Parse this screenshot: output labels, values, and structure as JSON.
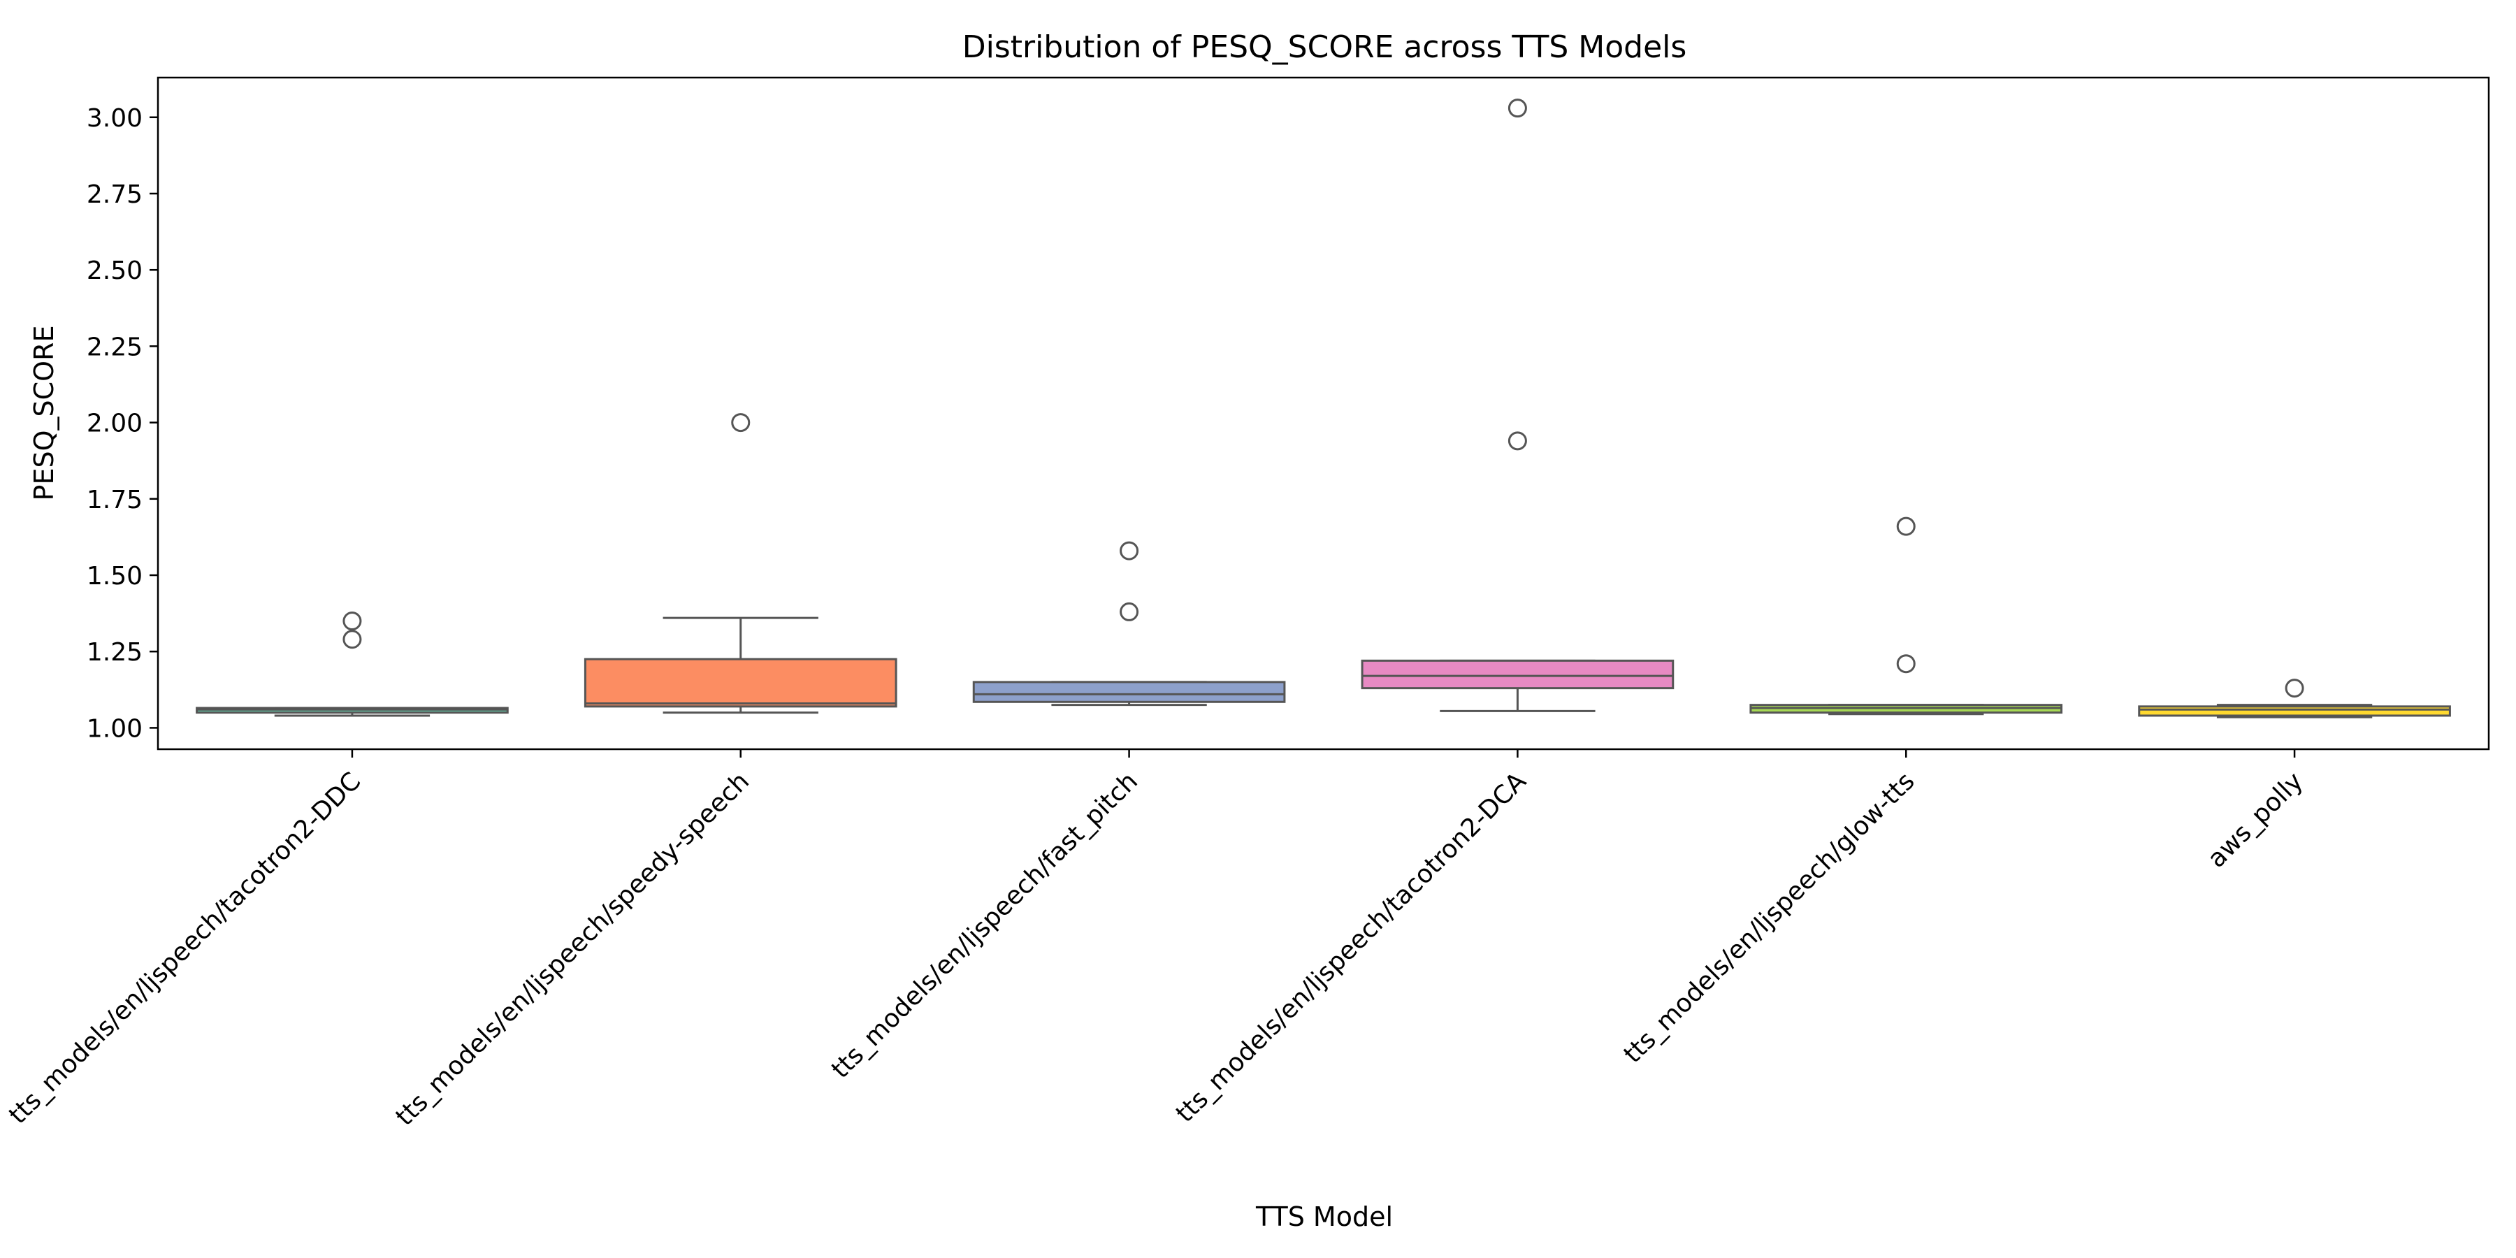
{
  "chart_data": {
    "type": "box",
    "title": "Distribution of PESQ_SCORE across TTS Models",
    "xlabel": "TTS Model",
    "ylabel": "PESQ_SCORE",
    "ylim": [
      0.93,
      3.13
    ],
    "yticks": [
      1.0,
      1.25,
      1.5,
      1.75,
      2.0,
      2.25,
      2.5,
      2.75,
      3.0
    ],
    "ytick_labels": [
      "1.00",
      "1.25",
      "1.50",
      "1.75",
      "2.00",
      "2.25",
      "2.50",
      "2.75",
      "3.00"
    ],
    "grid": false,
    "categories": [
      "tts_models/en/ljspeech/tacotron2-DDC",
      "tts_models/en/ljspeech/speedy-speech",
      "tts_models/en/ljspeech/fast_pitch",
      "tts_models/en/ljspeech/tacotron2-DCA",
      "tts_models/en/ljspeech/glow-tts",
      "aws_polly"
    ],
    "boxes": [
      {
        "whisker_low": 1.04,
        "q1": 1.05,
        "median": 1.06,
        "q3": 1.065,
        "whisker_high": 1.065,
        "outliers": [
          1.35,
          1.29
        ],
        "color": "#66c2a5"
      },
      {
        "whisker_low": 1.05,
        "q1": 1.07,
        "median": 1.08,
        "q3": 1.225,
        "whisker_high": 1.36,
        "outliers": [
          2.0
        ],
        "color": "#fc8d62"
      },
      {
        "whisker_low": 1.075,
        "q1": 1.085,
        "median": 1.11,
        "q3": 1.15,
        "whisker_high": 1.15,
        "outliers": [
          1.58,
          1.38
        ],
        "color": "#8da0cb"
      },
      {
        "whisker_low": 1.055,
        "q1": 1.13,
        "median": 1.17,
        "q3": 1.22,
        "whisker_high": 1.22,
        "outliers": [
          3.03,
          1.94
        ],
        "color": "#e78ac3"
      },
      {
        "whisker_low": 1.045,
        "q1": 1.05,
        "median": 1.065,
        "q3": 1.075,
        "whisker_high": 1.075,
        "outliers": [
          1.66,
          1.21
        ],
        "color": "#a6d854"
      },
      {
        "whisker_low": 1.035,
        "q1": 1.04,
        "median": 1.06,
        "q3": 1.07,
        "whisker_high": 1.075,
        "outliers": [
          1.13
        ],
        "color": "#ffd92f"
      }
    ],
    "box_edge_color": "#555555"
  }
}
